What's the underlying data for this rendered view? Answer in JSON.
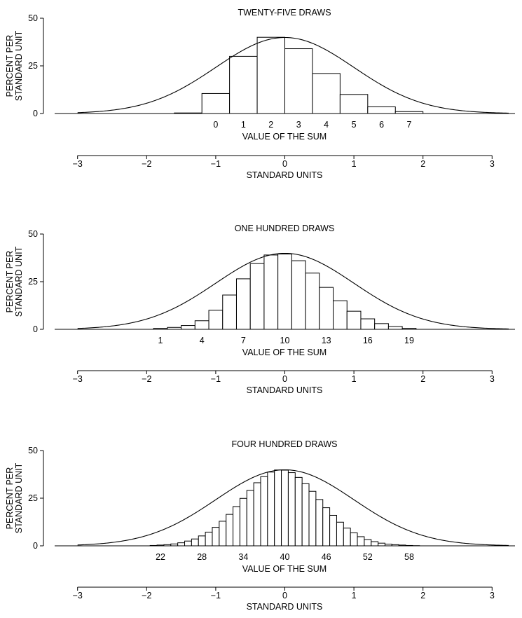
{
  "chart_data": [
    {
      "type": "bar",
      "title": "TWENTY-FIVE DRAWS",
      "ylabel": [
        "PERCENT PER",
        "STANDARD UNIT"
      ],
      "ylim": [
        0,
        50
      ],
      "yticks": [
        "0",
        "25",
        "50"
      ],
      "xlabel": "VALUE OF THE SUM",
      "xticks": [
        {
          "value": 0,
          "label": "0"
        },
        {
          "value": 1,
          "label": "1"
        },
        {
          "value": 2,
          "label": "2"
        },
        {
          "value": 3,
          "label": "3"
        },
        {
          "value": 4,
          "label": "4"
        },
        {
          "value": 5,
          "label": "5"
        },
        {
          "value": 6,
          "label": "6"
        },
        {
          "value": 7,
          "label": "7"
        }
      ],
      "bins": [
        {
          "value": -1,
          "height": 0.3
        },
        {
          "value": 0,
          "height": 10.5
        },
        {
          "value": 1,
          "height": 30
        },
        {
          "value": 2,
          "height": 40
        },
        {
          "value": 3,
          "height": 34
        },
        {
          "value": 4,
          "height": 21
        },
        {
          "value": 5,
          "height": 10
        },
        {
          "value": 6,
          "height": 3.5
        },
        {
          "value": 7,
          "height": 1
        }
      ],
      "curve": "normal",
      "standard_units": {
        "label": "STANDARD UNITS",
        "ticks": [
          "−3",
          "−2",
          "−1",
          "0",
          "1",
          "2",
          "3"
        ]
      }
    },
    {
      "type": "bar",
      "title": "ONE HUNDRED DRAWS",
      "ylabel": [
        "PERCENT PER",
        "STANDARD UNIT"
      ],
      "ylim": [
        0,
        50
      ],
      "yticks": [
        "0",
        "25",
        "50"
      ],
      "xlabel": "VALUE OF THE SUM",
      "xticks": [
        {
          "value": 1,
          "label": "1"
        },
        {
          "value": 4,
          "label": "4"
        },
        {
          "value": 7,
          "label": "7"
        },
        {
          "value": 10,
          "label": "10"
        },
        {
          "value": 13,
          "label": "13"
        },
        {
          "value": 16,
          "label": "16"
        },
        {
          "value": 19,
          "label": "19"
        }
      ],
      "bins": [
        {
          "value": 1,
          "height": 0.5
        },
        {
          "value": 2,
          "height": 1
        },
        {
          "value": 3,
          "height": 2
        },
        {
          "value": 4,
          "height": 4.5
        },
        {
          "value": 5,
          "height": 10
        },
        {
          "value": 6,
          "height": 18
        },
        {
          "value": 7,
          "height": 26.5
        },
        {
          "value": 8,
          "height": 34.5
        },
        {
          "value": 9,
          "height": 39
        },
        {
          "value": 10,
          "height": 39.5
        },
        {
          "value": 11,
          "height": 36
        },
        {
          "value": 12,
          "height": 29.5
        },
        {
          "value": 13,
          "height": 22
        },
        {
          "value": 14,
          "height": 15
        },
        {
          "value": 15,
          "height": 9.5
        },
        {
          "value": 16,
          "height": 5.5
        },
        {
          "value": 17,
          "height": 3
        },
        {
          "value": 18,
          "height": 1.5
        },
        {
          "value": 19,
          "height": 0.5
        }
      ],
      "curve": "normal",
      "standard_units": {
        "label": "STANDARD UNITS",
        "ticks": [
          "−3",
          "−2",
          "−1",
          "0",
          "1",
          "2",
          "3"
        ]
      }
    },
    {
      "type": "bar",
      "title": "FOUR HUNDRED DRAWS",
      "ylabel": [
        "PERCENT PER",
        "STANDARD UNIT"
      ],
      "ylim": [
        0,
        50
      ],
      "yticks": [
        "0",
        "25",
        "50"
      ],
      "xlabel": "VALUE OF THE SUM",
      "xticks": [
        {
          "value": 22,
          "label": "22"
        },
        {
          "value": 28,
          "label": "28"
        },
        {
          "value": 34,
          "label": "34"
        },
        {
          "value": 40,
          "label": "40"
        },
        {
          "value": 46,
          "label": "46"
        },
        {
          "value": 52,
          "label": "52"
        },
        {
          "value": 58,
          "label": "58"
        }
      ],
      "bins": [
        {
          "value": 21,
          "height": 0.2
        },
        {
          "value": 22,
          "height": 0.4
        },
        {
          "value": 23,
          "height": 0.6
        },
        {
          "value": 24,
          "height": 1
        },
        {
          "value": 25,
          "height": 1.6
        },
        {
          "value": 26,
          "height": 2.5
        },
        {
          "value": 27,
          "height": 3.6
        },
        {
          "value": 28,
          "height": 5.2
        },
        {
          "value": 29,
          "height": 7.2
        },
        {
          "value": 30,
          "height": 9.7
        },
        {
          "value": 31,
          "height": 12.9
        },
        {
          "value": 32,
          "height": 16.5
        },
        {
          "value": 33,
          "height": 20.6
        },
        {
          "value": 34,
          "height": 24.9
        },
        {
          "value": 35,
          "height": 29.1
        },
        {
          "value": 36,
          "height": 33.1
        },
        {
          "value": 37,
          "height": 36.3
        },
        {
          "value": 38,
          "height": 38.7
        },
        {
          "value": 39,
          "height": 39.8
        },
        {
          "value": 40,
          "height": 39.7
        },
        {
          "value": 41,
          "height": 38.4
        },
        {
          "value": 42,
          "height": 35.9
        },
        {
          "value": 43,
          "height": 32.6
        },
        {
          "value": 44,
          "height": 28.6
        },
        {
          "value": 45,
          "height": 24.3
        },
        {
          "value": 46,
          "height": 20
        },
        {
          "value": 47,
          "height": 16
        },
        {
          "value": 48,
          "height": 12.4
        },
        {
          "value": 49,
          "height": 9.3
        },
        {
          "value": 50,
          "height": 6.8
        },
        {
          "value": 51,
          "height": 4.8
        },
        {
          "value": 52,
          "height": 3.3
        },
        {
          "value": 53,
          "height": 2.2
        },
        {
          "value": 54,
          "height": 1.4
        },
        {
          "value": 55,
          "height": 0.9
        },
        {
          "value": 56,
          "height": 0.6
        },
        {
          "value": 57,
          "height": 0.4
        },
        {
          "value": 58,
          "height": 0.2
        },
        {
          "value": 59,
          "height": 0.1
        }
      ],
      "curve": "normal",
      "standard_units": {
        "label": "STANDARD UNITS",
        "ticks": [
          "−3",
          "−2",
          "−1",
          "0",
          "1",
          "2",
          "3"
        ]
      }
    }
  ]
}
